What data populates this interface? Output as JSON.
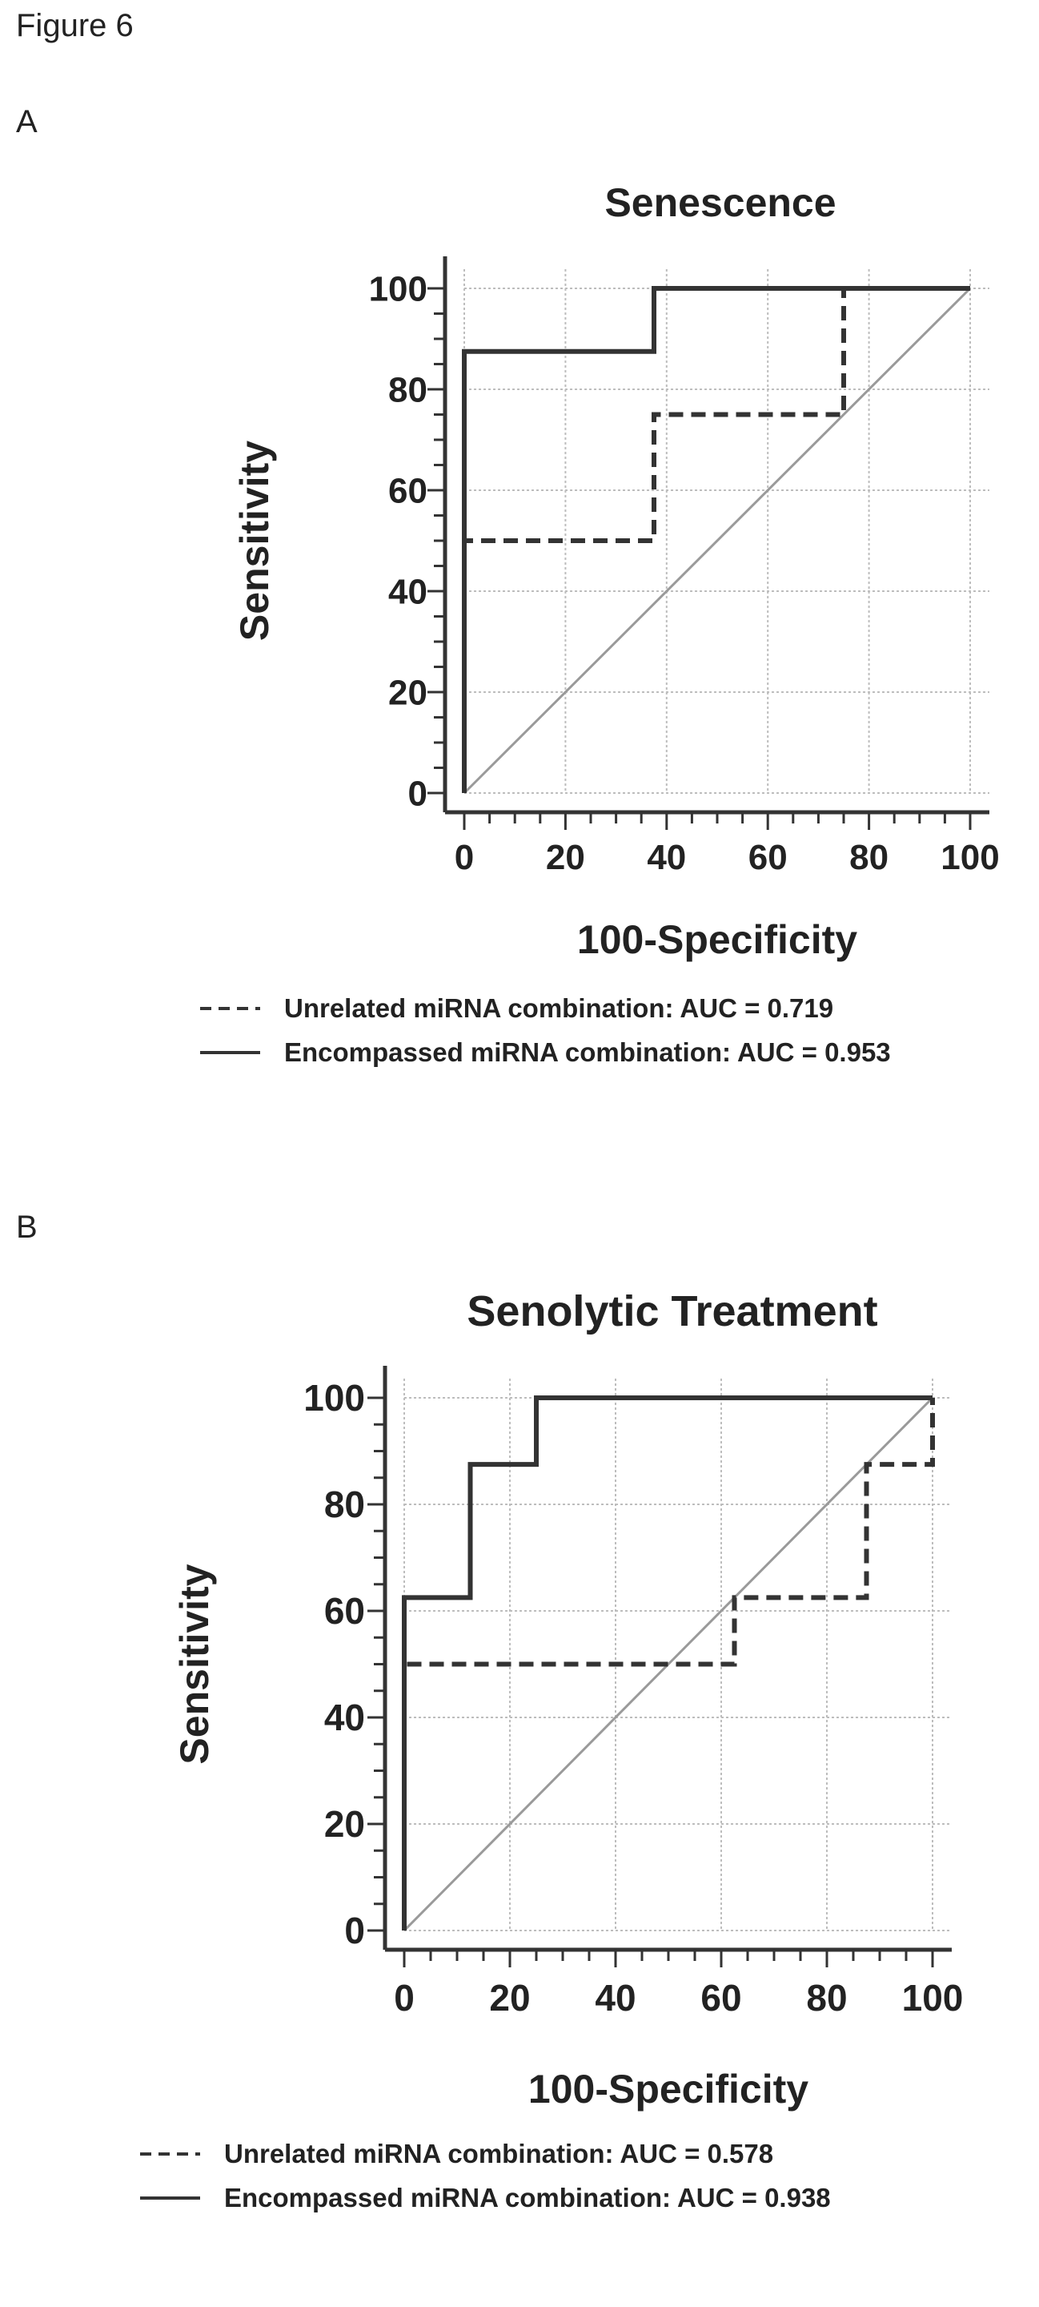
{
  "figure_label": "Figure 6",
  "chart_data": [
    {
      "panel": "A",
      "type": "line",
      "title": "Senescence",
      "xlabel": "100-Specificity",
      "ylabel": "Sensitivity",
      "xlim": [
        0,
        100
      ],
      "ylim": [
        0,
        100
      ],
      "xticks": [
        "0",
        "20",
        "40",
        "60",
        "80",
        "100"
      ],
      "yticks": [
        "0",
        "20",
        "40",
        "60",
        "80",
        "100"
      ],
      "grid": true,
      "reference_line": [
        [
          0,
          0
        ],
        [
          100,
          100
        ]
      ],
      "series": [
        {
          "name": "Unrelated miRNA combination: AUC = 0.719",
          "style": "dashed",
          "x": [
            0,
            0,
            37.5,
            37.5,
            75,
            75,
            100
          ],
          "y": [
            0,
            50,
            50,
            75,
            75,
            100,
            100
          ]
        },
        {
          "name": "Encompassed miRNA combination: AUC = 0.953",
          "style": "solid",
          "x": [
            0,
            0,
            37.5,
            37.5,
            100
          ],
          "y": [
            0,
            87.5,
            87.5,
            100,
            100
          ]
        }
      ]
    },
    {
      "panel": "B",
      "type": "line",
      "title": "Senolytic Treatment",
      "xlabel": "100-Specificity",
      "ylabel": "Sensitivity",
      "xlim": [
        0,
        100
      ],
      "ylim": [
        0,
        100
      ],
      "xticks": [
        "0",
        "20",
        "40",
        "60",
        "80",
        "100"
      ],
      "yticks": [
        "0",
        "20",
        "40",
        "60",
        "80",
        "100"
      ],
      "grid": true,
      "reference_line": [
        [
          0,
          0
        ],
        [
          100,
          100
        ]
      ],
      "series": [
        {
          "name": "Unrelated miRNA combination: AUC = 0.578",
          "style": "dashed",
          "x": [
            0,
            0,
            62.5,
            62.5,
            87.5,
            87.5,
            100,
            100
          ],
          "y": [
            0,
            50,
            50,
            62.5,
            62.5,
            87.5,
            87.5,
            100
          ]
        },
        {
          "name": "Encompassed miRNA combination: AUC = 0.938",
          "style": "solid",
          "x": [
            0,
            0,
            12.5,
            12.5,
            25,
            25,
            100
          ],
          "y": [
            0,
            62.5,
            62.5,
            87.5,
            87.5,
            100,
            100
          ]
        }
      ]
    }
  ]
}
